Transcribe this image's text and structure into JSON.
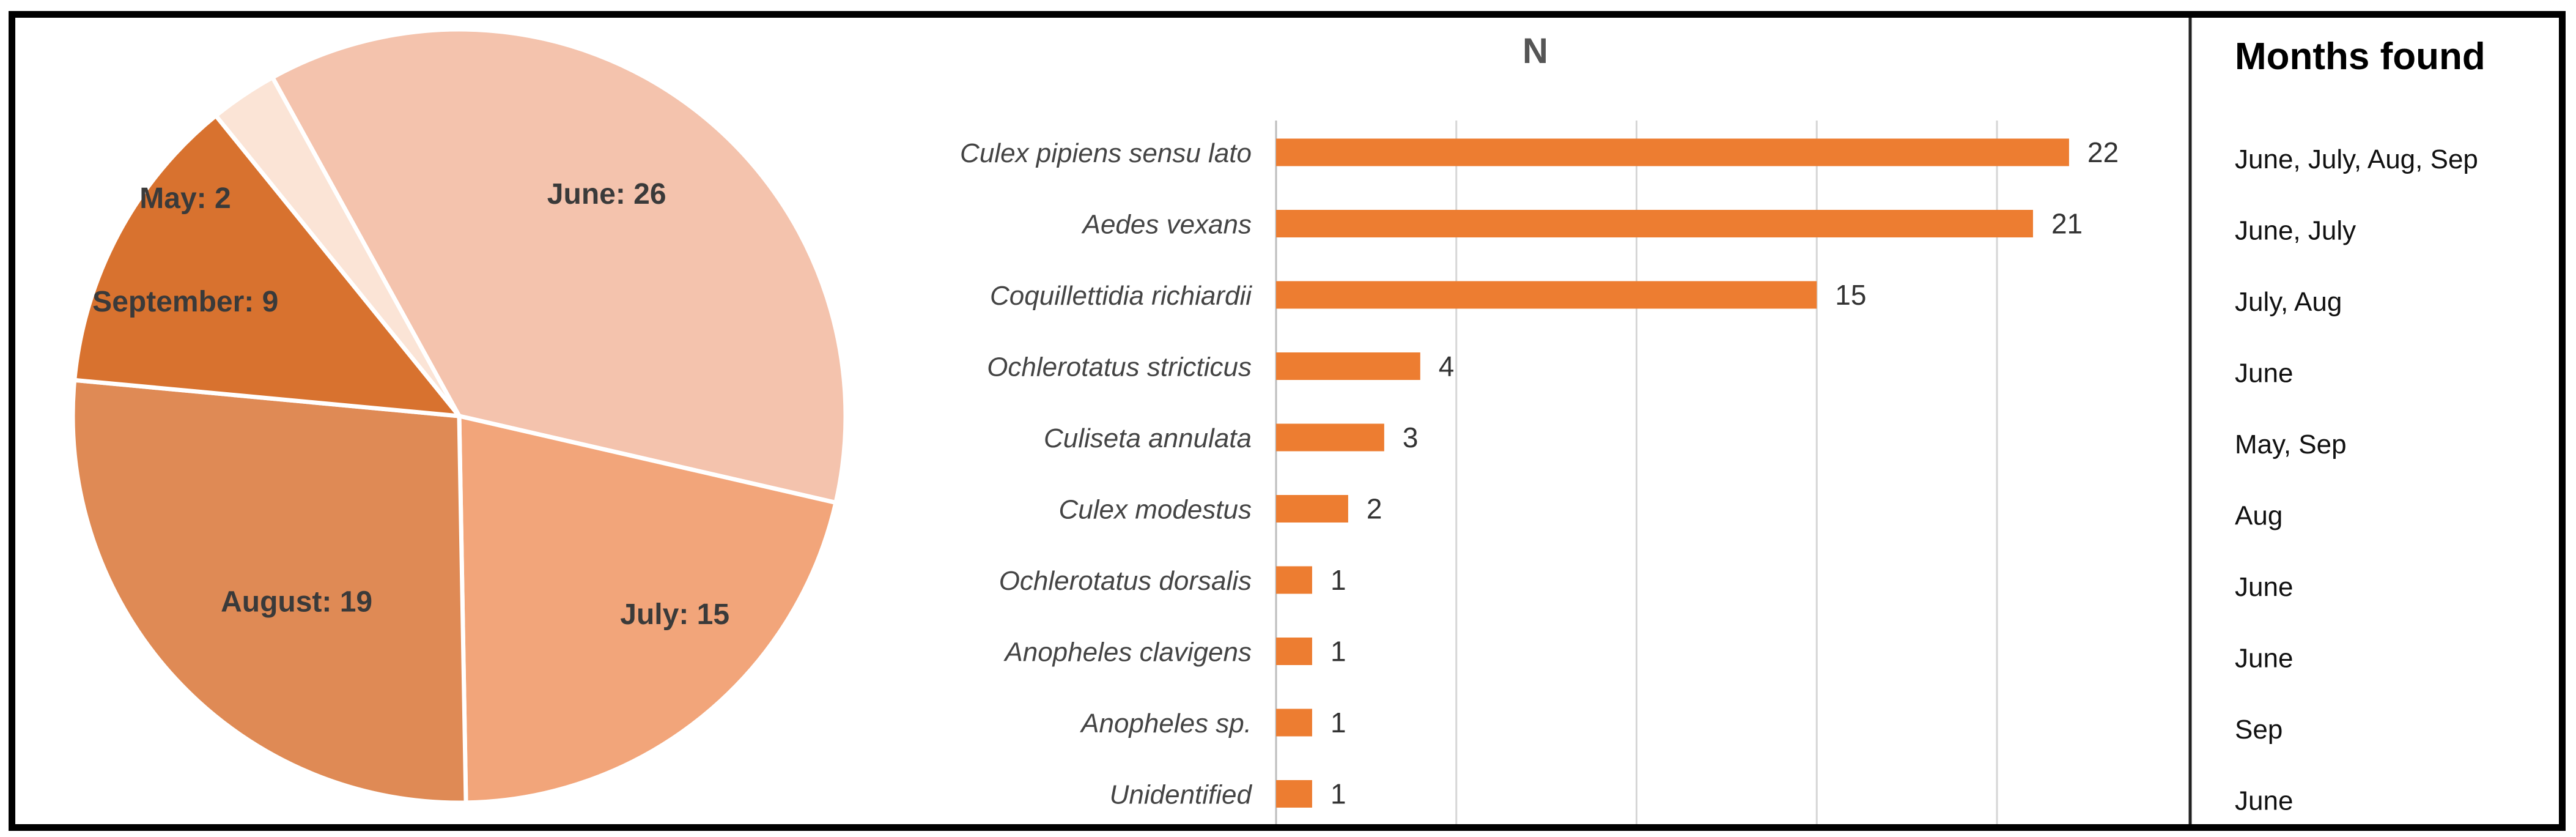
{
  "chart_data": [
    {
      "type": "pie",
      "slices": [
        {
          "label": "June: 26",
          "month": "June",
          "value": 26,
          "color": "#f4c3ad"
        },
        {
          "label": "July: 15",
          "month": "July",
          "value": 15,
          "color": "#f2a57a"
        },
        {
          "label": "August: 19",
          "month": "August",
          "value": 19,
          "color": "#df8a55"
        },
        {
          "label": "September: 9",
          "month": "September",
          "value": 9,
          "color": "#d8722f"
        },
        {
          "label": "May: 2",
          "month": "May",
          "value": 2,
          "color": "#fbe4d6"
        }
      ]
    },
    {
      "type": "bar",
      "orientation": "horizontal",
      "title": "N",
      "categories": [
        "Culex pipiens sensu lato",
        "Aedes vexans",
        "Coquillettidia richiardii",
        "Ochlerotatus stricticus",
        "Culiseta annulata",
        "Culex modestus",
        "Ochlerotatus dorsalis",
        "Anopheles clavigens",
        "Anopheles sp.",
        "Unidentified"
      ],
      "values": [
        22,
        21,
        15,
        4,
        3,
        2,
        1,
        1,
        1,
        1
      ],
      "xlim": [
        0,
        25
      ],
      "x_gridlines": [
        0,
        5,
        10,
        15,
        20
      ],
      "grid": true,
      "bar_color": "#ed7d31"
    }
  ],
  "months_found": {
    "header": "Months found",
    "items": [
      "June, July, Aug, Sep",
      "June, July",
      "July, Aug",
      "June",
      "May, Sep",
      "Aug",
      "June",
      "June",
      "Sep",
      "June"
    ]
  }
}
